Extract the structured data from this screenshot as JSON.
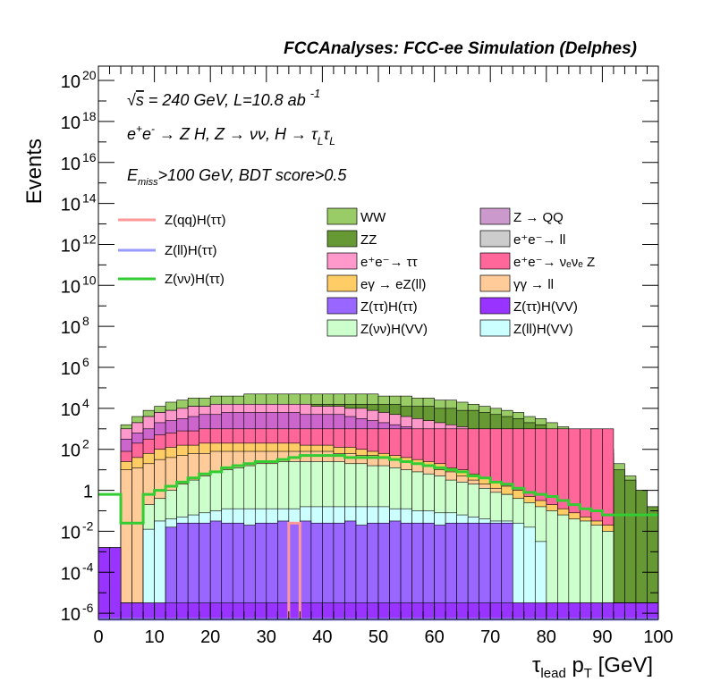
{
  "chart_data": {
    "type": "histogram",
    "title": "FCCAnalyses: FCC-ee Simulation (Delphes)",
    "xlabel": "τ_lead p_T [GeV]",
    "ylabel": "Events",
    "xlim": [
      0,
      100
    ],
    "ylim_log10": [
      -6.3,
      20.7
    ],
    "log_y": true,
    "bin_edges": [
      0,
      2,
      4,
      6,
      8,
      10,
      12,
      14,
      16,
      18,
      20,
      22,
      24,
      26,
      28,
      30,
      32,
      34,
      36,
      38,
      40,
      42,
      44,
      46,
      48,
      50,
      52,
      54,
      56,
      58,
      60,
      62,
      64,
      66,
      68,
      70,
      72,
      74,
      76,
      78,
      80,
      82,
      84,
      86,
      88,
      90,
      92,
      94,
      96,
      98,
      100
    ],
    "x_ticks": [
      0,
      10,
      20,
      30,
      40,
      50,
      60,
      70,
      80,
      90,
      100
    ],
    "y_tick_labels": [
      {
        "exp": -6,
        "label": "10",
        "sup": "-6"
      },
      {
        "exp": -4,
        "label": "10",
        "sup": "-4"
      },
      {
        "exp": -2,
        "label": "10",
        "sup": "-2"
      },
      {
        "exp": 0,
        "label": "1",
        "sup": ""
      },
      {
        "exp": 2,
        "label": "10",
        "sup": "2"
      },
      {
        "exp": 4,
        "label": "10",
        "sup": "4"
      },
      {
        "exp": 6,
        "label": "10",
        "sup": "6"
      },
      {
        "exp": 8,
        "label": "10",
        "sup": "8"
      },
      {
        "exp": 10,
        "label": "10",
        "sup": "10"
      },
      {
        "exp": 12,
        "label": "10",
        "sup": "12"
      },
      {
        "exp": 14,
        "label": "10",
        "sup": "14"
      },
      {
        "exp": 16,
        "label": "10",
        "sup": "16"
      },
      {
        "exp": 18,
        "label": "10",
        "sup": "18"
      },
      {
        "exp": 20,
        "label": "10",
        "sup": "20"
      }
    ],
    "annotations": [
      {
        "text": "√s = 240 GeV, L=10.8 ab",
        "sup": "-1"
      },
      {
        "text": "e⁺e⁻ → Z H, Z → νν, H → τ_L τ_L"
      },
      {
        "text": "E_miss>100 GeV, BDT score>0.5"
      }
    ],
    "stack_log10_tops": [
      {
        "name": "Z → QQ",
        "color": "#cc99cc",
        "log10_tops": [
          -6.5,
          -6.5,
          -6.5,
          -6.5,
          -6.5,
          -6.5,
          -6.5,
          -6.5,
          -6.5,
          -6.5,
          -6.5,
          -6.5,
          -6.5,
          -6.5,
          -6.5,
          -6.5,
          -6.5,
          -6.5,
          -6.5,
          -6.5,
          -6.5,
          -6.5,
          -6.5,
          -6.5,
          -6.5,
          -6.5,
          -6.5,
          -6.5,
          -6.5,
          -6.5,
          -6.5,
          -6.5,
          -6.5,
          -6.5,
          -6.5,
          -6.5,
          -6.5,
          -6.5,
          -6.5,
          -6.5,
          -6.5,
          -6.5,
          -6.5,
          -6.5,
          -6.5,
          -6.5,
          -6.5,
          -6.5,
          -6.5,
          -6.5
        ]
      },
      {
        "name": "Z(ττ)H(VV)",
        "color": "#9933ff",
        "log10_tops": [
          -2.8,
          -2.8,
          -5.5,
          -5.5,
          -5.5,
          -5.5,
          -5.5,
          -5.5,
          -5.5,
          -5.5,
          -5.5,
          -5.5,
          -5.5,
          -5.5,
          -5.5,
          -5.5,
          -5.5,
          -5.5,
          -5.5,
          -5.5,
          -5.5,
          -5.5,
          -5.5,
          -5.5,
          -5.5,
          -5.5,
          -5.5,
          -5.5,
          -5.5,
          -5.5,
          -5.5,
          -5.5,
          -5.5,
          -5.5,
          -5.5,
          -5.5,
          -5.5,
          -5.5,
          -5.5,
          -5.5,
          -5.5,
          -5.5,
          -5.5,
          -5.5,
          -5.5,
          -5.5,
          -5.5,
          -5.5,
          -5.5,
          -5.5
        ]
      },
      {
        "name": "Z(ττ)H(ττ)",
        "color": "#9966ff",
        "log10_tops": [
          -2.8,
          -2.8,
          -5.5,
          -5.5,
          -5.5,
          -5.5,
          -1.8,
          -1.6,
          -1.6,
          -1.6,
          -1.5,
          -1.6,
          -1.6,
          -1.7,
          -1.6,
          -1.6,
          -1.5,
          -1.6,
          -1.5,
          -1.6,
          -1.6,
          -1.6,
          -1.5,
          -1.7,
          -1.6,
          -1.6,
          -1.5,
          -1.6,
          -1.6,
          -1.6,
          -1.7,
          -1.6,
          -1.6,
          -1.6,
          -1.6,
          -1.6,
          -1.6,
          -5.5,
          -5.5,
          -5.5,
          -5.5,
          -5.5,
          -5.5,
          -5.5,
          -5.5,
          -5.5,
          -5.5,
          -5.5,
          -5.5,
          -5.5
        ]
      },
      {
        "name": "Z(ll)H(VV)",
        "color": "#ccffff",
        "log10_tops": [
          -2.8,
          -2.8,
          -5.5,
          -5.5,
          -1.9,
          -1.5,
          -1.4,
          -1.3,
          -1.2,
          -1.1,
          -1.0,
          -0.9,
          -0.9,
          -0.9,
          -0.9,
          -0.9,
          -0.9,
          -0.9,
          -0.8,
          -0.8,
          -0.8,
          -0.8,
          -0.8,
          -0.8,
          -0.8,
          -0.8,
          -0.9,
          -0.9,
          -1.0,
          -1.0,
          -1.1,
          -1.1,
          -1.2,
          -1.3,
          -1.4,
          -1.5,
          -1.5,
          -1.6,
          -1.8,
          -2.5,
          -5.5,
          -5.5,
          -5.5,
          -5.5,
          -5.5,
          -5.5,
          -5.5,
          -5.5,
          -5.5,
          -5.5
        ]
      },
      {
        "name": "Z(νν)H(VV)",
        "color": "#ccffcc",
        "log10_tops": [
          -2.8,
          -2.8,
          -5.5,
          -5.5,
          -0.7,
          -0.4,
          0.0,
          0.3,
          0.5,
          0.7,
          0.9,
          1.0,
          1.1,
          1.2,
          1.3,
          1.3,
          1.4,
          1.4,
          1.4,
          1.4,
          1.4,
          1.4,
          1.3,
          1.3,
          1.2,
          1.2,
          1.1,
          1.0,
          0.9,
          0.8,
          0.7,
          0.5,
          0.4,
          0.3,
          0.1,
          -0.1,
          -0.2,
          -0.4,
          -0.6,
          -0.8,
          -1.0,
          -1.2,
          -1.4,
          -1.5,
          -1.7,
          -2.0,
          -5.5,
          -5.5,
          -5.5,
          -5.5
        ]
      },
      {
        "name": "γγ → ll",
        "color": "#ffcc99",
        "log10_tops": [
          -2.8,
          -2.8,
          1.0,
          1.1,
          1.3,
          1.5,
          1.6,
          1.7,
          1.8,
          1.8,
          1.9,
          1.9,
          1.9,
          1.9,
          1.9,
          1.9,
          1.9,
          1.9,
          1.9,
          1.9,
          1.9,
          1.8,
          1.8,
          1.7,
          1.7,
          1.6,
          1.5,
          1.4,
          1.3,
          1.2,
          1.0,
          0.9,
          0.7,
          0.5,
          0.3,
          0.1,
          -0.2,
          -0.5,
          -0.8,
          -1.2,
          -1.5,
          -1.8,
          -2.0,
          -2.2,
          -2.3,
          -2.4,
          -5.5,
          -5.5,
          -5.5,
          -5.5
        ]
      },
      {
        "name": "eγ → eZ(ll)",
        "color": "#ffcc66",
        "log10_tops": [
          -2.8,
          -2.8,
          1.4,
          1.6,
          1.8,
          2.0,
          2.1,
          2.2,
          2.2,
          2.3,
          2.3,
          2.3,
          2.3,
          2.3,
          2.3,
          2.3,
          2.3,
          2.3,
          2.2,
          2.2,
          2.2,
          2.1,
          2.1,
          2.0,
          1.9,
          1.8,
          1.7,
          1.6,
          1.5,
          1.4,
          1.3,
          1.1,
          1.0,
          0.8,
          0.6,
          0.4,
          0.2,
          0.0,
          -0.3,
          -0.5,
          -0.7,
          -0.9,
          -1.1,
          -1.3,
          -1.5,
          -1.7,
          -5.5,
          -5.5,
          -5.5,
          -5.5
        ]
      },
      {
        "name": "e⁺e⁻→ νₑνₑ Z",
        "color": "#ff6699",
        "log10_tops": [
          -2.8,
          -2.8,
          1.9,
          2.3,
          2.5,
          2.7,
          2.8,
          2.9,
          2.9,
          3.0,
          3.0,
          3.0,
          3.0,
          3.0,
          3.0,
          3.0,
          3.0,
          3.0,
          3.0,
          3.0,
          3.0,
          3.0,
          3.0,
          3.0,
          3.0,
          3.0,
          3.0,
          3.0,
          3.0,
          3.0,
          3.0,
          3.0,
          3.0,
          3.0,
          3.0,
          3.0,
          3.0,
          3.0,
          3.0,
          3.0,
          3.0,
          3.0,
          3.0,
          3.0,
          3.0,
          3.0,
          -5.5,
          -5.5,
          -5.5,
          -5.5
        ]
      },
      {
        "name": "e⁺e⁻ → ll",
        "color": "#cc66cc",
        "log10_tops": [
          -2.8,
          -2.8,
          2.5,
          2.8,
          3.0,
          3.3,
          3.4,
          3.5,
          3.6,
          3.7,
          3.7,
          3.8,
          3.8,
          3.8,
          3.8,
          3.8,
          3.8,
          3.8,
          3.7,
          3.7,
          3.7,
          3.7,
          3.6,
          3.5,
          3.4,
          3.3,
          3.2,
          3.1,
          3.0,
          2.9,
          2.8,
          2.7,
          2.5,
          2.4,
          2.2,
          2.0,
          1.9,
          1.7,
          1.5,
          1.3,
          1.1,
          0.9,
          0.7,
          0.5,
          0.3,
          0.2,
          -5.5,
          -5.5,
          -5.5,
          -5.5
        ]
      },
      {
        "name": "e⁺e⁻→ ττ",
        "color": "#ff99cc",
        "log10_tops": [
          -2.8,
          -2.8,
          3.0,
          3.3,
          3.6,
          3.8,
          3.9,
          4.0,
          4.1,
          4.1,
          4.2,
          4.2,
          4.2,
          4.2,
          4.2,
          4.2,
          4.2,
          4.2,
          4.2,
          4.1,
          4.1,
          4.1,
          4.0,
          4.0,
          3.9,
          3.8,
          3.7,
          3.6,
          3.5,
          3.4,
          3.3,
          3.2,
          3.1,
          2.9,
          2.8,
          2.7,
          2.6,
          2.5,
          2.4,
          2.3,
          2.2,
          2.1,
          2.1,
          2.0,
          2.0,
          2.0,
          -5.5,
          -5.5,
          -5.5,
          -5.5
        ]
      },
      {
        "name": "ZZ",
        "color": "#669933",
        "log10_tops": [
          -2.8,
          -2.8,
          3.0,
          3.3,
          3.6,
          3.8,
          3.9,
          4.0,
          4.1,
          4.1,
          4.2,
          4.2,
          4.2,
          4.2,
          4.2,
          4.2,
          4.2,
          4.2,
          4.2,
          4.2,
          4.2,
          4.2,
          4.2,
          4.2,
          4.2,
          4.2,
          4.2,
          4.1,
          4.1,
          4.1,
          4.0,
          4.0,
          3.9,
          3.9,
          3.8,
          3.7,
          3.6,
          3.5,
          3.3,
          3.2,
          3.0,
          2.8,
          2.6,
          2.3,
          2.0,
          1.6,
          1.0,
          0.5,
          0.0,
          -0.8
        ]
      },
      {
        "name": "WW",
        "color": "#99cc66",
        "log10_tops": [
          -2.8,
          -2.8,
          3.2,
          3.6,
          3.9,
          4.1,
          4.3,
          4.4,
          4.5,
          4.5,
          4.6,
          4.6,
          4.6,
          4.7,
          4.7,
          4.7,
          4.7,
          4.7,
          4.7,
          4.7,
          4.7,
          4.7,
          4.7,
          4.7,
          4.7,
          4.6,
          4.6,
          4.6,
          4.5,
          4.5,
          4.4,
          4.4,
          4.3,
          4.2,
          4.1,
          4.0,
          3.9,
          3.8,
          3.6,
          3.5,
          3.3,
          3.1,
          2.8,
          2.5,
          2.2,
          1.8,
          1.3,
          0.7,
          0.0,
          -0.8
        ]
      }
    ],
    "signal_lines": [
      {
        "name": "Z(qq)H(ττ)",
        "color": "#ff9999",
        "log10_values": [
          -6.5,
          -6.5,
          -6.5,
          -6.5,
          -6.5,
          -6.5,
          -6.5,
          -6.5,
          -6.5,
          -6.5,
          -6.5,
          -6.5,
          -6.5,
          -6.5,
          -6.5,
          -6.5,
          -6.5,
          -1.6,
          -6.5,
          -6.5,
          -6.5,
          -6.5,
          -6.5,
          -6.5,
          -6.5,
          -6.5,
          -6.5,
          -6.5,
          -6.5,
          -6.5,
          -6.5,
          -6.5,
          -6.5,
          -6.5,
          -6.5,
          -6.5,
          -6.5,
          -6.5,
          -6.5,
          -6.5,
          -6.5,
          -6.5,
          -6.5,
          -6.5,
          -6.5,
          -6.5,
          -6.5,
          -6.5,
          -6.5,
          -6.5
        ]
      },
      {
        "name": "Z(ll)H(ττ)",
        "color": "#9999ff",
        "log10_values": [
          -6.5,
          -6.5,
          -6.5,
          -6.5,
          -6.5,
          -6.5,
          -6.5,
          -6.5,
          -6.5,
          -6.5,
          -6.5,
          -6.5,
          -6.5,
          -6.5,
          -6.5,
          -6.5,
          -6.5,
          -6.5,
          -6.5,
          -6.5,
          -6.5,
          -6.5,
          -6.5,
          -6.5,
          -6.5,
          -6.5,
          -6.5,
          -6.5,
          -6.5,
          -6.5,
          -6.5,
          -6.5,
          -6.5,
          -6.5,
          -6.5,
          -6.5,
          -6.5,
          -6.5,
          -6.5,
          -6.5,
          -6.5,
          -6.5,
          -6.5,
          -6.5,
          -6.5,
          -6.5,
          -6.5,
          -6.5,
          -6.5,
          -6.5
        ]
      },
      {
        "name": "Z(νν)H(ττ)",
        "color": "#33cc33",
        "log10_values": [
          -0.2,
          -0.2,
          -1.6,
          -1.6,
          -0.2,
          0.0,
          0.2,
          0.4,
          0.6,
          0.8,
          0.9,
          1.1,
          1.2,
          1.3,
          1.4,
          1.4,
          1.5,
          1.6,
          1.7,
          1.7,
          1.7,
          1.7,
          1.6,
          1.6,
          1.6,
          1.6,
          1.5,
          1.4,
          1.3,
          1.2,
          1.1,
          1.0,
          0.9,
          0.7,
          0.6,
          0.4,
          0.3,
          0.1,
          -0.1,
          -0.2,
          -0.3,
          -0.5,
          -0.7,
          -0.9,
          -1.0,
          -1.2,
          -1.2,
          -1.2,
          -1.2,
          -1.2
        ]
      }
    ],
    "legend_placement": "upper-middle",
    "legend_lines": [
      "Z(qq)H(ττ)",
      "Z(ll)H(ττ)",
      "Z(νν)H(ττ)"
    ],
    "legend_fills": [
      "WW",
      "Z → QQ",
      "ZZ",
      "e⁺e⁻→ ll",
      "e⁺e⁻→ ττ",
      "e⁺e⁻→ νₑνₑ Z",
      "eγ → eZ(ll)",
      "γγ → ll",
      "Z(ττ)H(ττ)",
      "Z(ττ)H(VV)",
      "Z(νν)H(VV)",
      "Z(ll)H(VV)"
    ]
  }
}
